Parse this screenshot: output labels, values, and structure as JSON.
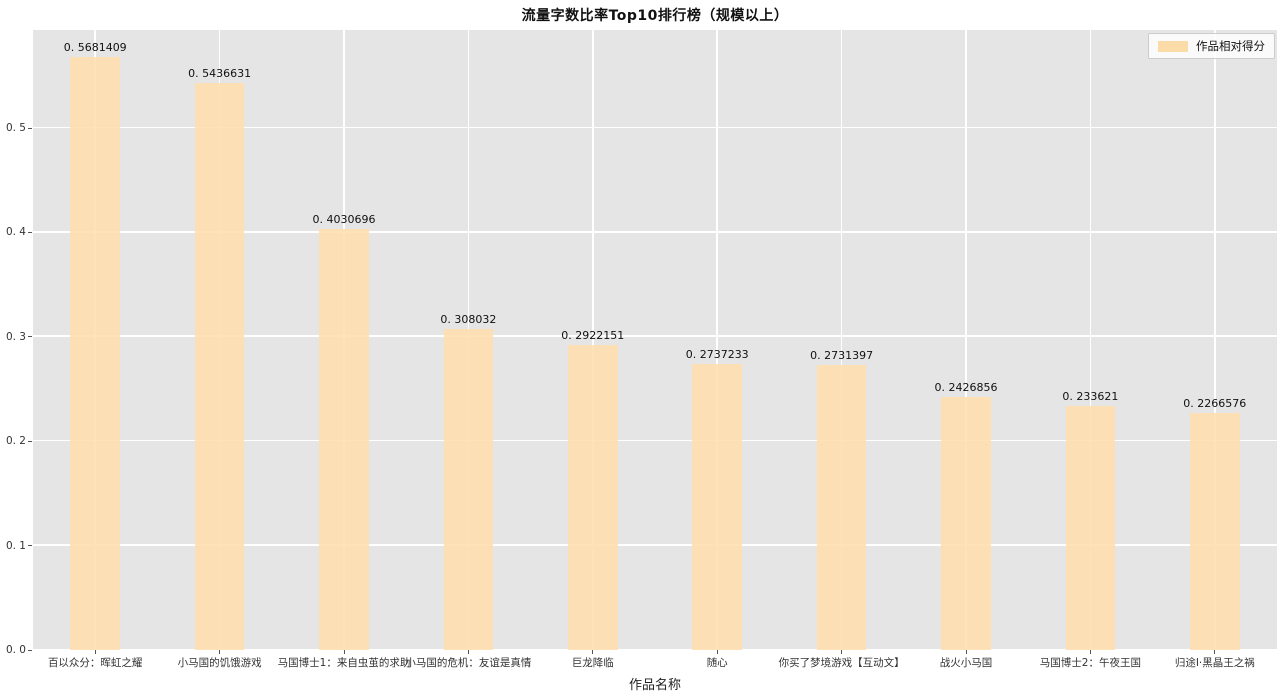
{
  "chart": {
    "title": "流量字数比率Top10排行榜（规模以上）",
    "xlabel": "作品名称",
    "legend_label": "作品相对得分"
  },
  "chart_data": {
    "type": "bar",
    "title": "流量字数比率Top10排行榜（规模以上）",
    "xlabel": "作品名称",
    "ylabel": "",
    "legend": [
      "作品相对得分"
    ],
    "legend_position": "upper right",
    "grid": true,
    "categories": [
      "百以众分：晖虹之耀",
      "小马国的饥饿游戏",
      "马国博士1：来自虫茧的求助",
      "小马国的危机：友谊是真情",
      "巨龙降临",
      "随心",
      "你买了梦境游戏【互动文】",
      "战火小马国",
      "马国博士2：午夜王国",
      "归途I·黑晶王之祸"
    ],
    "values": [
      0.5681409,
      0.5436631,
      0.4030696,
      0.308032,
      0.2922151,
      0.2737233,
      0.2731397,
      0.2426856,
      0.233621,
      0.2266576
    ],
    "value_labels": [
      "0. 5681409",
      "0. 5436631",
      "0. 4030696",
      "0. 308032",
      "0. 2922151",
      "0. 2737233",
      "0. 2731397",
      "0. 2426856",
      "0. 233621",
      "0. 2266576"
    ],
    "yticks": [
      0.0,
      0.1,
      0.2,
      0.3,
      0.4,
      0.5
    ],
    "ytick_labels": [
      "0. 0",
      "0. 1",
      "0. 2",
      "0. 3",
      "0. 4",
      "0. 5"
    ],
    "ylim": [
      0,
      0.594
    ],
    "colors": {
      "bar_fill": "#FFDEAD",
      "bar_alpha": 0.88,
      "plot_background": "#E5E5E5",
      "gridline": "#FFFFFF",
      "figure_background": "#FFFFFF",
      "tick": "#555555",
      "text": "#111111"
    }
  }
}
